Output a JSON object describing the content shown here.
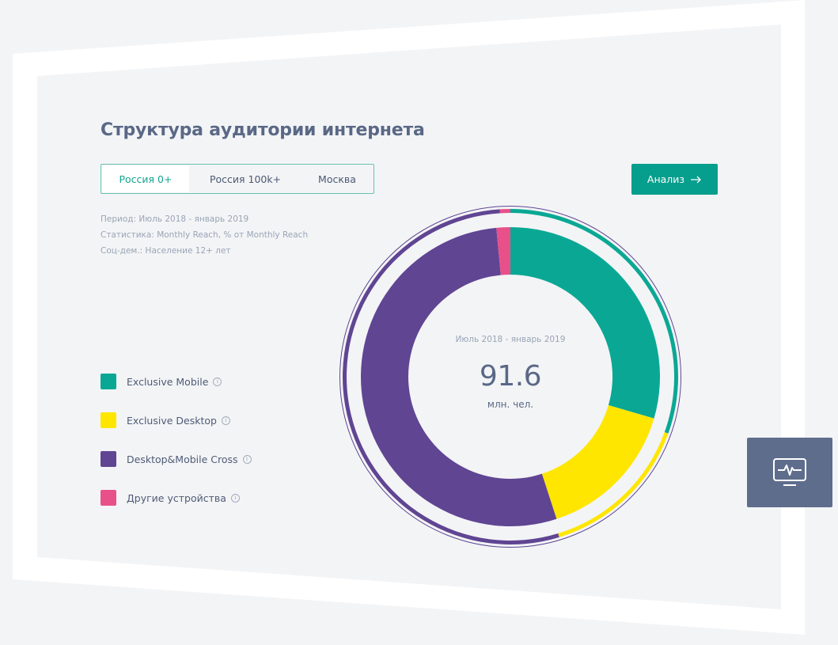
{
  "title": "Структура аудитории интернета",
  "tabs": [
    {
      "label": "Россия 0+",
      "active": true
    },
    {
      "label": "Россия 100k+",
      "active": false
    },
    {
      "label": "Москва",
      "active": false
    }
  ],
  "analysis_button": {
    "label": "Анализ",
    "icon": "arrow-right-icon"
  },
  "meta": {
    "period": "Период: Июль 2018 - январь 2019",
    "statistics": "Статистика: Monthly Reach, % от Monthly Reach",
    "socdem": "Соц-дем.: Население 12+ лет"
  },
  "legend": [
    {
      "label": "Exclusive Mobile",
      "color": "#0aa894"
    },
    {
      "label": "Exclusive Desktop",
      "color": "#ffe600"
    },
    {
      "label": "Desktop&Mobile Cross",
      "color": "#604593"
    },
    {
      "label": "Другие устройства",
      "color": "#e8508a"
    }
  ],
  "center": {
    "period": "Июль 2018 - январь 2019",
    "value": "91.6",
    "unit": "млн. чел."
  },
  "monitor_button": {
    "icon": "monitor-pulse-icon"
  },
  "colors": {
    "accent": "#069e8c",
    "tab_border": "#66c3ad",
    "monitor_bg": "#5f6d8c"
  },
  "chart_data": {
    "type": "pie",
    "categories": [
      "Exclusive Mobile",
      "Exclusive Desktop",
      "Desktop&Mobile Cross",
      "Другие устройства"
    ],
    "values": [
      29.5,
      15.5,
      53.5,
      1.5
    ],
    "colors": [
      "#0aa894",
      "#ffe600",
      "#604593",
      "#e8508a"
    ],
    "outer_ring": {
      "values": [
        30.5,
        14.8,
        53.7,
        1.0
      ],
      "colors": [
        "#0aa894",
        "#ffe600",
        "#604593",
        "#e8508a"
      ]
    },
    "title": "Структура аудитории интернета",
    "legend": "left"
  }
}
